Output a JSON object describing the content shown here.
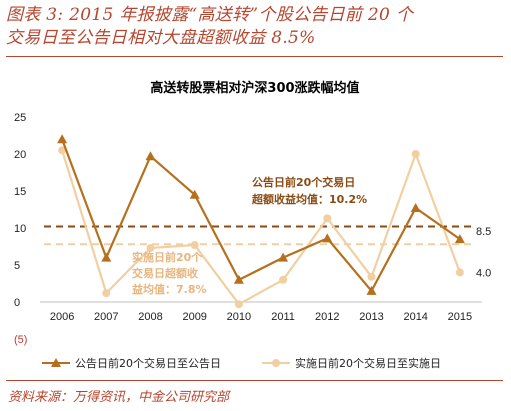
{
  "figure": {
    "title_line1": "图表 3: 2015 年报披露“高送转”个股公告日前 20 个",
    "title_line2": "交易日至公告日相对大盘超额收益 8.5%",
    "source": "资料来源：万得资讯，中金公司研究部"
  },
  "chart_data": {
    "type": "line",
    "title": "高送转股票相对沪深300涨跌幅均值",
    "categories": [
      "2006",
      "2007",
      "2008",
      "2009",
      "2010",
      "2011",
      "2012",
      "2013",
      "2014",
      "2015"
    ],
    "ylim": [
      -5,
      25
    ],
    "yticks": [
      "25",
      "20",
      "15",
      "10",
      "5",
      "0",
      "(5)"
    ],
    "series": [
      {
        "name": "公告日前20个交易日至公告日",
        "color": "#b5701e",
        "marker": "triangle",
        "values": [
          22,
          6,
          19.7,
          14.5,
          3,
          6,
          8.6,
          1.5,
          12.7,
          8.5
        ]
      },
      {
        "name": "实施日前20个交易日至实施日",
        "color": "#f2cfa2",
        "marker": "circle",
        "values": [
          20.5,
          1.2,
          7.3,
          7.7,
          -0.3,
          3,
          11.3,
          3.4,
          20,
          4
        ]
      }
    ],
    "reference_lines": [
      {
        "value": 10.2,
        "color": "#8b4a12"
      },
      {
        "value": 7.8,
        "color": "#f2cfa2"
      }
    ],
    "annotations": {
      "avg1_line1": "公告日前20个交易日",
      "avg1_line2": "超额收益均值：10.2%",
      "avg2_line1": "实施日前20个",
      "avg2_line2": "交易日超额收",
      "avg2_line3": "益均值：7.8%",
      "end_label_1": "8.5",
      "end_label_2": "4.0"
    }
  }
}
